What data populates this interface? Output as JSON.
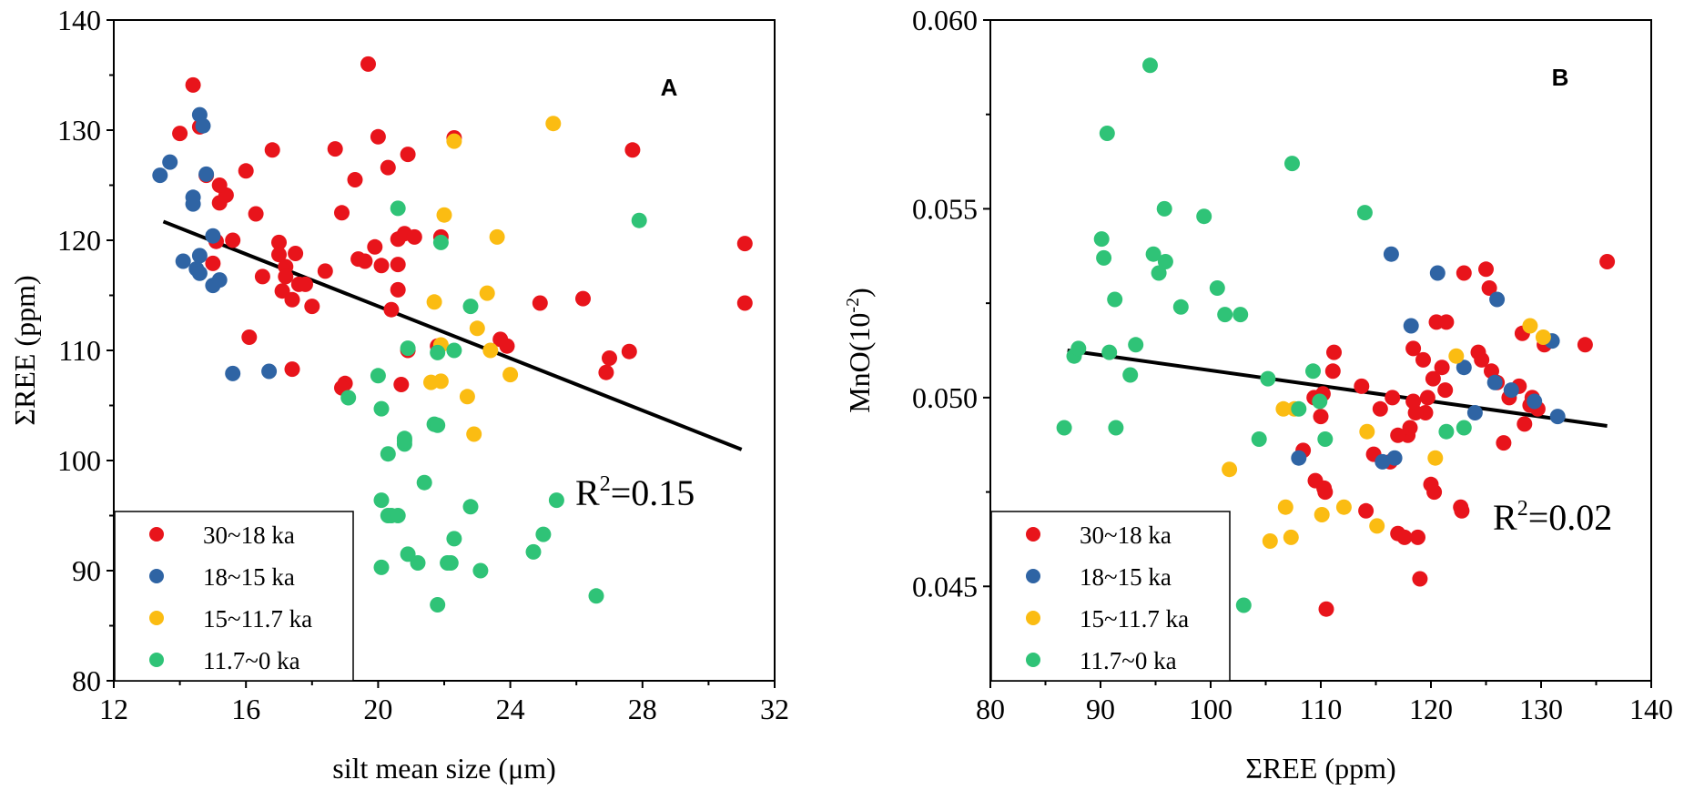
{
  "colors": {
    "red": "#e8141b",
    "blue": "#2f64a4",
    "yellow": "#fbbc12",
    "green": "#2fc377"
  },
  "chart_data": [
    {
      "type": "scatter",
      "panel": "A",
      "xlabel": "silt mean size (μm)",
      "ylabel": "ΣREE (ppm)",
      "xlim": [
        12,
        32
      ],
      "ylim": [
        80,
        140
      ],
      "xticks": [
        "12",
        "16",
        "20",
        "24",
        "28",
        "32"
      ],
      "yticks": [
        "80",
        "90",
        "100",
        "110",
        "120",
        "130",
        "140"
      ],
      "r2_label": "R",
      "r2_sup": "2",
      "r2_value": "=0.15",
      "legend_position": "bottom-left",
      "fit_line": {
        "x": [
          13.5,
          31.0
        ],
        "y": [
          121.7,
          101.0
        ]
      },
      "series": [
        {
          "name": "30~18 ka",
          "color": "red",
          "x": [
            14.4,
            14.0,
            14.6,
            14.8,
            15.2,
            15.4,
            15.1,
            15.6,
            15.0,
            15.2,
            16.0,
            16.3,
            16.5,
            16.8,
            17.0,
            17.0,
            17.1,
            17.2,
            17.5,
            17.2,
            17.6,
            17.4,
            17.8,
            16.1,
            18.0,
            18.4,
            18.7,
            18.9,
            19.0,
            19.3,
            19.4,
            19.6,
            19.7,
            20.0,
            20.1,
            19.9,
            20.3,
            20.6,
            20.8,
            20.6,
            20.6,
            20.4,
            20.7,
            20.9,
            21.1,
            21.9,
            21.8,
            22.3,
            23.7,
            23.9,
            24.9,
            26.2,
            27.7,
            27.0,
            26.9,
            27.6,
            31.1,
            31.1,
            18.9,
            17.4,
            20.9
          ],
          "y": [
            134.1,
            129.7,
            130.3,
            125.9,
            123.4,
            124.1,
            119.9,
            120.0,
            117.9,
            125.0,
            126.3,
            122.4,
            116.7,
            128.2,
            119.8,
            118.7,
            115.4,
            117.6,
            118.8,
            116.7,
            116.0,
            114.6,
            116.0,
            111.2,
            114.0,
            117.2,
            128.3,
            122.5,
            107.0,
            125.5,
            118.3,
            118.1,
            136.0,
            129.4,
            117.7,
            119.4,
            126.6,
            120.1,
            120.6,
            117.8,
            115.5,
            113.7,
            106.9,
            127.8,
            120.3,
            120.3,
            110.4,
            129.3,
            111.0,
            110.4,
            114.3,
            114.7,
            128.2,
            109.3,
            108.0,
            109.9,
            119.7,
            114.3,
            106.6,
            108.3,
            110.0
          ]
        },
        {
          "name": "18~15 ka",
          "color": "blue",
          "x": [
            13.4,
            13.7,
            14.1,
            14.4,
            14.4,
            14.5,
            14.6,
            14.6,
            14.8,
            14.7,
            15.0,
            15.0,
            15.2,
            15.6,
            16.7,
            14.6
          ],
          "y": [
            125.9,
            127.1,
            118.1,
            123.9,
            123.3,
            117.4,
            118.6,
            131.4,
            126.0,
            130.4,
            120.4,
            115.9,
            116.4,
            107.9,
            108.1,
            117.0
          ]
        },
        {
          "name": "15~11.7 ka",
          "color": "yellow",
          "x": [
            21.7,
            22.0,
            22.3,
            21.9,
            21.6,
            21.9,
            22.7,
            22.9,
            23.0,
            23.3,
            23.4,
            23.6,
            24.0,
            25.3
          ],
          "y": [
            114.4,
            122.3,
            129.0,
            107.2,
            107.1,
            110.5,
            105.8,
            102.4,
            112.0,
            115.2,
            110.0,
            120.3,
            107.8,
            130.6
          ]
        },
        {
          "name": "11.7~0 ka",
          "color": "green",
          "x": [
            20.6,
            21.9,
            21.8,
            22.3,
            22.8,
            20.9,
            19.1,
            20.0,
            20.1,
            20.3,
            20.8,
            20.8,
            20.4,
            21.4,
            21.7,
            21.8,
            22.2,
            20.1,
            20.3,
            20.6,
            20.9,
            21.2,
            22.1,
            22.3,
            22.8,
            23.1,
            24.7,
            25.0,
            25.4,
            26.6,
            27.9,
            20.1,
            20.8,
            21.8
          ],
          "y": [
            122.9,
            119.8,
            109.8,
            110.0,
            114.0,
            110.2,
            105.7,
            107.7,
            104.7,
            100.6,
            101.5,
            102.0,
            95.0,
            98.0,
            103.3,
            103.2,
            90.7,
            96.4,
            95.0,
            95.0,
            91.5,
            90.7,
            90.7,
            92.9,
            95.8,
            90.0,
            91.7,
            93.3,
            96.4,
            87.7,
            121.8,
            90.3,
            101.8,
            86.9
          ]
        }
      ]
    },
    {
      "type": "scatter",
      "panel": "B",
      "xlabel": "ΣREE (ppm)",
      "ylabel_main": "MnO(10",
      "ylabel_sup": "-2",
      "ylabel_end": ")",
      "xlim": [
        80,
        140
      ],
      "ylim": [
        0.0425,
        0.06
      ],
      "xticks": [
        "80",
        "90",
        "100",
        "110",
        "120",
        "130",
        "140"
      ],
      "yticks": [
        "0.045",
        "0.050",
        "0.055",
        "0.060"
      ],
      "ytick_values": [
        0.045,
        0.05,
        0.055,
        0.06
      ],
      "r2_label": "R",
      "r2_sup": "2",
      "r2_value": "=0.02",
      "legend_position": "bottom-left",
      "fit_line": {
        "x": [
          87.0,
          136.0
        ],
        "y": [
          0.05125,
          0.04925
        ]
      },
      "series": [
        {
          "name": "30~18 ka",
          "color": "red",
          "x": [
            108.4,
            109.5,
            110.3,
            110.5,
            111.2,
            111.1,
            110.2,
            113.7,
            114.1,
            114.8,
            115.4,
            116.3,
            117.0,
            117.6,
            117.9,
            118.4,
            118.8,
            119.0,
            119.7,
            120.0,
            120.3,
            120.5,
            121.0,
            121.3,
            122.7,
            122.8,
            123.0,
            124.3,
            124.6,
            125.0,
            125.3,
            125.5,
            126.0,
            126.6,
            127.1,
            128.0,
            128.3,
            128.5,
            129.0,
            129.2,
            129.7,
            130.3,
            134.0,
            136.0,
            119.3,
            119.5,
            120.2,
            118.6,
            117.0,
            116.5,
            118.4,
            110.0,
            109.4,
            118.1,
            110.4,
            121.4
          ],
          "y": [
            0.0486,
            0.0478,
            0.0476,
            0.0444,
            0.0512,
            0.0507,
            0.0501,
            0.0503,
            0.047,
            0.0485,
            0.0497,
            0.0483,
            0.0464,
            0.0463,
            0.049,
            0.0513,
            0.0463,
            0.0452,
            0.05,
            0.0477,
            0.0475,
            0.052,
            0.0508,
            0.0502,
            0.0471,
            0.047,
            0.0533,
            0.0512,
            0.051,
            0.0534,
            0.0529,
            0.0507,
            0.0504,
            0.0488,
            0.05,
            0.0503,
            0.0517,
            0.0493,
            0.0498,
            0.05,
            0.0497,
            0.0514,
            0.0514,
            0.0536,
            0.051,
            0.0496,
            0.0505,
            0.0496,
            0.049,
            0.05,
            0.0499,
            0.0495,
            0.05,
            0.0492,
            0.0475,
            0.052
          ]
        },
        {
          "name": "18~15 ka",
          "color": "blue",
          "x": [
            108.0,
            115.6,
            116.4,
            116.7,
            118.2,
            120.6,
            123.0,
            124.0,
            125.8,
            126.0,
            127.3,
            129.4,
            131.0,
            131.5
          ],
          "y": [
            0.0484,
            0.0483,
            0.0538,
            0.0484,
            0.0519,
            0.0533,
            0.0508,
            0.0496,
            0.0504,
            0.0526,
            0.0502,
            0.0499,
            0.0515,
            0.0495
          ]
        },
        {
          "name": "15~11.7 ka",
          "color": "yellow",
          "x": [
            101.7,
            105.4,
            106.8,
            107.3,
            107.6,
            110.1,
            112.1,
            114.2,
            115.1,
            120.4,
            122.3,
            129.0,
            130.2,
            106.6
          ],
          "y": [
            0.0481,
            0.0462,
            0.0471,
            0.0463,
            0.0497,
            0.0469,
            0.0471,
            0.0491,
            0.0466,
            0.0484,
            0.0511,
            0.0519,
            0.0516,
            0.0497
          ]
        },
        {
          "name": "11.7~0 ka",
          "color": "green",
          "x": [
            86.7,
            87.6,
            90.1,
            90.3,
            90.6,
            91.3,
            91.4,
            92.7,
            93.2,
            94.5,
            94.8,
            95.3,
            95.8,
            95.9,
            97.3,
            99.4,
            100.6,
            101.3,
            102.7,
            103.0,
            104.4,
            105.2,
            107.4,
            108.0,
            109.3,
            109.9,
            110.4,
            114.0,
            121.4,
            123.0,
            88.0,
            90.8
          ],
          "y": [
            0.0492,
            0.0511,
            0.0542,
            0.0537,
            0.057,
            0.0526,
            0.0492,
            0.0506,
            0.0514,
            0.0588,
            0.0538,
            0.0533,
            0.055,
            0.0536,
            0.0524,
            0.0548,
            0.0529,
            0.0522,
            0.0522,
            0.0445,
            0.0489,
            0.0505,
            0.0562,
            0.0497,
            0.0507,
            0.0499,
            0.0489,
            0.0549,
            0.0491,
            0.0492,
            0.0513,
            0.0512
          ]
        }
      ]
    }
  ]
}
